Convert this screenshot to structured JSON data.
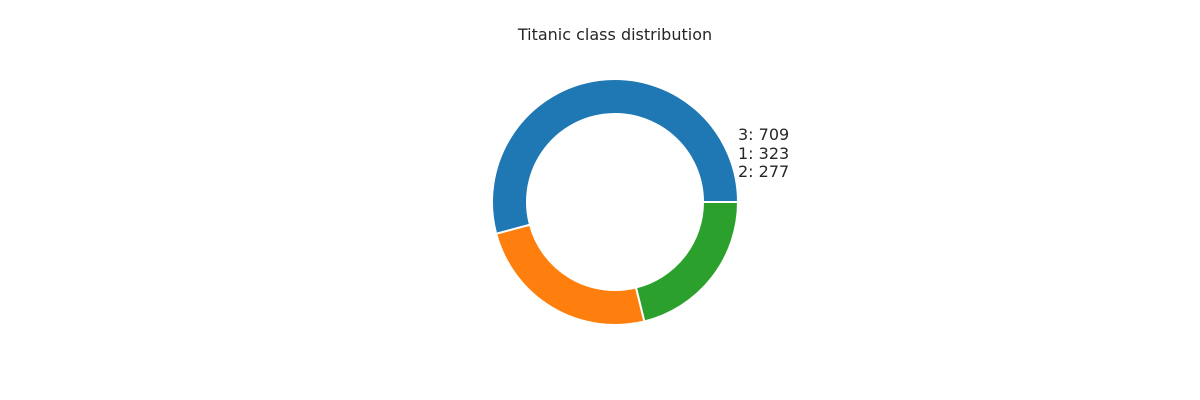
{
  "chart_data": {
    "type": "pie",
    "title": "Titanic class distribution",
    "labels": [
      "3",
      "1",
      "2"
    ],
    "values": [
      709,
      323,
      277
    ],
    "colors": [
      "#1f77b4",
      "#ff7f0e",
      "#2ca02c"
    ],
    "legend": [
      "3: 709",
      "1: 323",
      "2: 277"
    ],
    "donut": true,
    "legend_placement": "right"
  }
}
